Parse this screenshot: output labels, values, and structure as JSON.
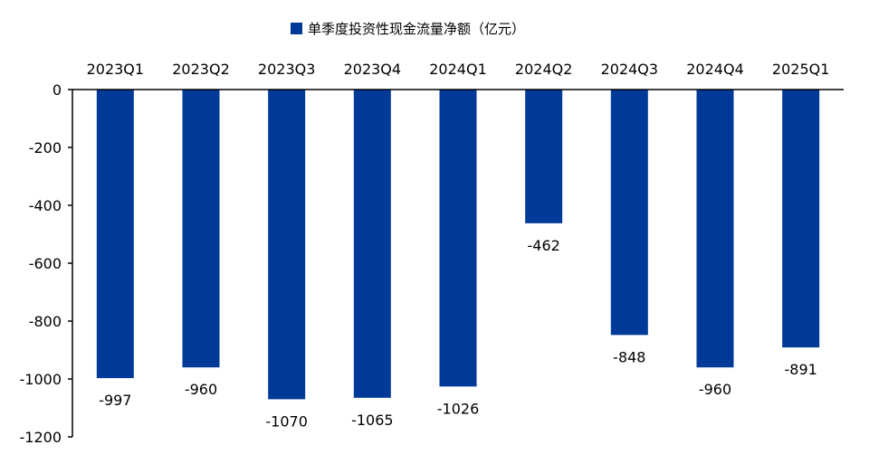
{
  "chart_data": {
    "type": "bar",
    "title": "",
    "xlabel": "",
    "ylabel": "",
    "categories": [
      "2023Q1",
      "2023Q2",
      "2023Q3",
      "2023Q4",
      "2024Q1",
      "2024Q2",
      "2024Q3",
      "2024Q4",
      "2025Q1"
    ],
    "series": [
      {
        "name": "单季度投资性现金流量净额（亿元）",
        "values": [
          -997,
          -960,
          -1070,
          -1065,
          -1026,
          -462,
          -848,
          -960,
          -891
        ],
        "color": "#003a99"
      }
    ],
    "data_labels": [
      "-997",
      "-960",
      "-1070",
      "-1065",
      "-1026",
      "-462",
      "-848",
      "-960",
      "-891"
    ],
    "ylim": [
      -1200,
      0
    ],
    "yticks": [
      0,
      -200,
      -400,
      -600,
      -800,
      -1000,
      -1200
    ],
    "ytick_labels": [
      "0",
      "-200",
      "-400",
      "-600",
      "-800",
      "-1000",
      "-1200"
    ],
    "grid": false,
    "legend_position": "top-center",
    "category_labels_position": "top"
  }
}
